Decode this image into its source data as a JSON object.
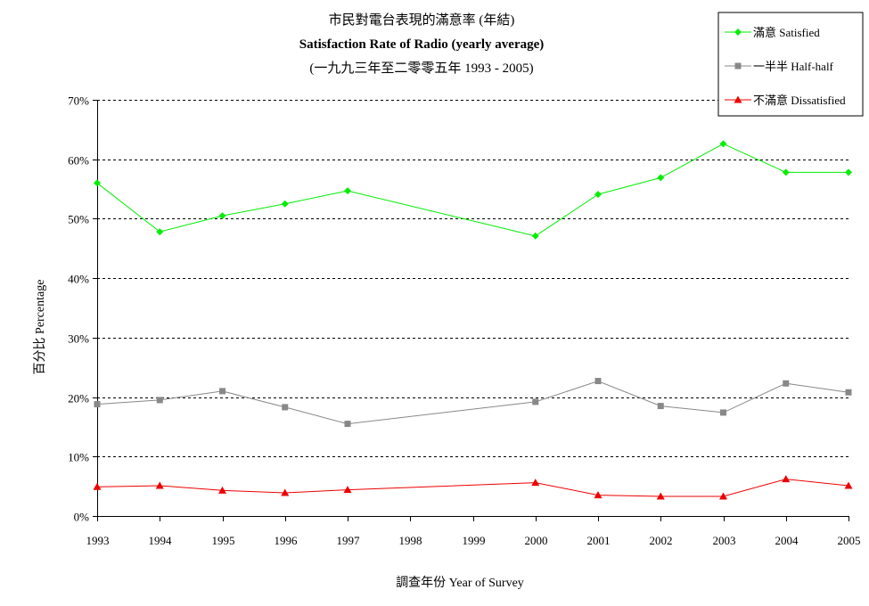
{
  "chart_data": {
    "type": "line",
    "title_lines": [
      "市民對電台表現的滿意率 (年結)",
      "Satisfaction Rate of Radio (yearly average)",
      "(一九九三年至二零零五年 1993 - 2005)"
    ],
    "xlabel": "調查年份 Year of Survey",
    "ylabel": "百分比 Percentage",
    "x": [
      1993,
      1994,
      1995,
      1996,
      1997,
      1998,
      1999,
      2000,
      2001,
      2002,
      2003,
      2004,
      2005
    ],
    "x_tick_labels": [
      "1993",
      "1994",
      "1995",
      "1996",
      "1997",
      "1998",
      "1999",
      "2000",
      "2001",
      "2002",
      "2003",
      "2004",
      "2005"
    ],
    "ylim": [
      0,
      70
    ],
    "y_ticks": [
      0,
      10,
      20,
      30,
      40,
      50,
      60,
      70
    ],
    "y_tick_labels": [
      "0%",
      "10%",
      "20%",
      "30%",
      "40%",
      "50%",
      "60%",
      "70%"
    ],
    "grid": "horizontal dashed",
    "legend_position": "top-right",
    "series": [
      {
        "name": "滿意 Satisfied",
        "color": "#00ee00",
        "marker": "diamond",
        "x": [
          1993,
          1994,
          1995,
          1996,
          1997,
          2000,
          2001,
          2002,
          2003,
          2004,
          2005
        ],
        "values": [
          56.0,
          47.8,
          50.5,
          52.5,
          54.7,
          47.1,
          54.1,
          56.9,
          62.6,
          57.8,
          57.8
        ]
      },
      {
        "name": "一半半 Half-half",
        "color": "#888888",
        "marker": "square",
        "x": [
          1993,
          1994,
          1995,
          1996,
          1997,
          2000,
          2001,
          2002,
          2003,
          2004,
          2005
        ],
        "values": [
          18.8,
          19.5,
          21.0,
          18.3,
          15.5,
          19.2,
          22.7,
          18.5,
          17.4,
          22.3,
          20.8
        ]
      },
      {
        "name": "不滿意 Dissatisfied",
        "color": "#ee0000",
        "marker": "triangle",
        "x": [
          1993,
          1994,
          1995,
          1996,
          1997,
          2000,
          2001,
          2002,
          2003,
          2004,
          2005
        ],
        "values": [
          4.9,
          5.1,
          4.3,
          3.9,
          4.4,
          5.6,
          3.5,
          3.3,
          3.3,
          6.2,
          5.1
        ]
      }
    ]
  }
}
